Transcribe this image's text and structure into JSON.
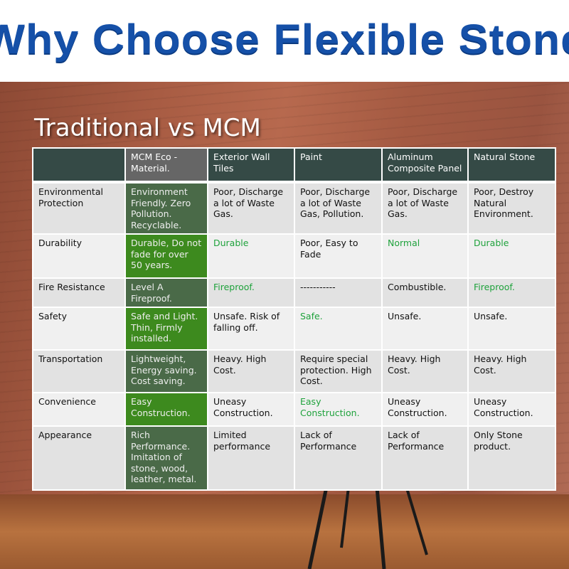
{
  "header": {
    "title": "Why Choose Flexible Stone"
  },
  "subtitle": "Traditional vs MCM",
  "colors": {
    "title": "#1550a8",
    "header_bg": "#354a46",
    "mcm_dark": "#4a6a48",
    "mcm_bright": "#3d8a1e",
    "positive_text": "#1fa23c"
  },
  "table": {
    "columns": [
      "",
      "MCM Eco - Material.",
      "Exterior Wall Tiles",
      "Paint",
      "Aluminum Composite Panel",
      "Natural Stone"
    ],
    "rows": [
      {
        "label": "Environmental Protection",
        "cells": [
          {
            "text": "Environment Friendly. Zero Pollution. Recyclable.",
            "green": false
          },
          {
            "text": "Poor, Discharge a lot of Waste Gas.",
            "green": false
          },
          {
            "text": "Poor, Discharge a lot of Waste Gas, Pollution.",
            "green": false
          },
          {
            "text": "Poor, Discharge a lot of Waste Gas.",
            "green": false
          },
          {
            "text": "Poor, Destroy Natural Environment.",
            "green": false
          }
        ]
      },
      {
        "label": "Durability",
        "cells": [
          {
            "text": "Durable, Do not fade for over 50 years.",
            "green": false
          },
          {
            "text": "Durable",
            "green": true
          },
          {
            "text": "Poor, Easy to Fade",
            "green": false
          },
          {
            "text": "Normal",
            "green": true
          },
          {
            "text": "Durable",
            "green": true
          }
        ]
      },
      {
        "label": "Fire Resistance",
        "cells": [
          {
            "text": "Level A Fireproof.",
            "green": false
          },
          {
            "text": "Fireproof.",
            "green": true
          },
          {
            "text": "-----------",
            "green": false
          },
          {
            "text": "Combustible.",
            "green": false
          },
          {
            "text": "Fireproof.",
            "green": true
          }
        ]
      },
      {
        "label": "Safety",
        "cells": [
          {
            "text": "Safe and Light. Thin, Firmly installed.",
            "green": false
          },
          {
            "text": "Unsafe. Risk of falling off.",
            "green": false
          },
          {
            "text": "Safe.",
            "green": true
          },
          {
            "text": "Unsafe.",
            "green": false
          },
          {
            "text": "Unsafe.",
            "green": false
          }
        ]
      },
      {
        "label": "Transportation",
        "cells": [
          {
            "text": "Lightweight, Energy saving. Cost saving.",
            "green": false
          },
          {
            "text": "Heavy. High Cost.",
            "green": false
          },
          {
            "text": "Require special protection. High Cost.",
            "green": false
          },
          {
            "text": "Heavy. High Cost.",
            "green": false
          },
          {
            "text": "Heavy. High Cost.",
            "green": false
          }
        ]
      },
      {
        "label": "Convenience",
        "cells": [
          {
            "text": "Easy Construction.",
            "green": false
          },
          {
            "text": "Uneasy Construction.",
            "green": false
          },
          {
            "text": "Easy Construction.",
            "green": true
          },
          {
            "text": "Uneasy Construction.",
            "green": false
          },
          {
            "text": "Uneasy Construction.",
            "green": false
          }
        ]
      },
      {
        "label": "Appearance",
        "cells": [
          {
            "text": "Rich Performance. Imitation of stone, wood, leather, metal.",
            "green": false
          },
          {
            "text": "Limited performance",
            "green": false
          },
          {
            "text": "Lack of Performance",
            "green": false
          },
          {
            "text": "Lack of Performance",
            "green": false
          },
          {
            "text": "Only Stone product.",
            "green": false
          }
        ]
      }
    ]
  }
}
